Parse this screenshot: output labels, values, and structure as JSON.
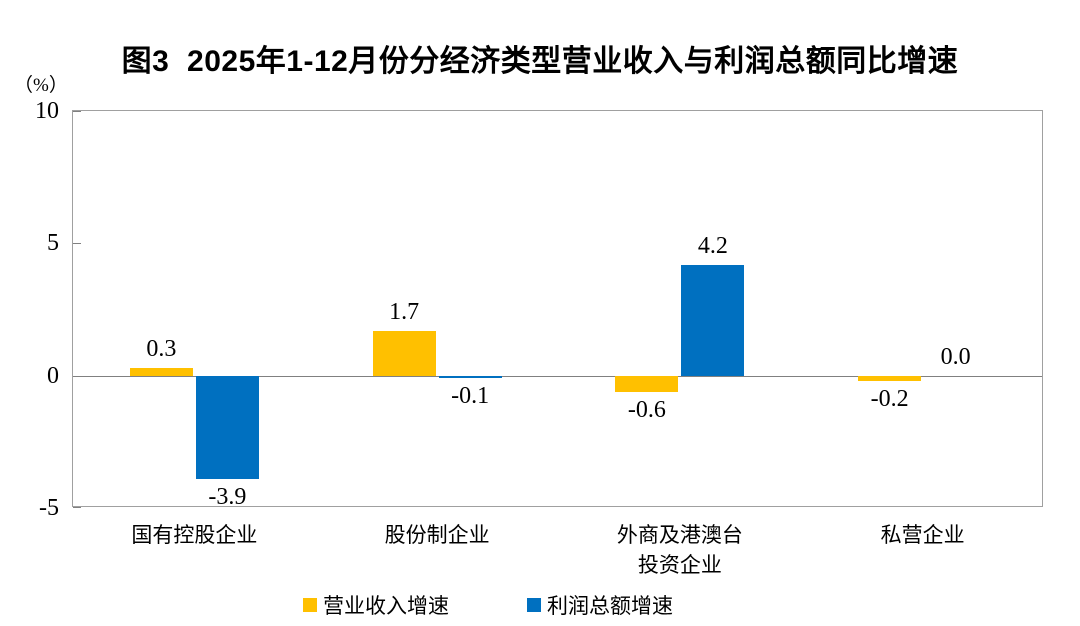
{
  "chart": {
    "title": "图3  2025年1-12月份分经济类型营业收入与利润总额同比增速",
    "unit_label": "（%）"
  },
  "chart_data": {
    "type": "bar",
    "title": "图3  2025年1-12月份分经济类型营业收入与利润总额同比增速",
    "unit": "%",
    "categories": [
      "国有控股企业",
      "股份制企业",
      "外商及港澳台\n投资企业",
      "私营企业"
    ],
    "series": [
      {
        "name": "营业收入增速",
        "color": "#FFC000",
        "values": [
          0.3,
          1.7,
          -0.6,
          -0.2
        ]
      },
      {
        "name": "利润总额增速",
        "color": "#0070C0",
        "values": [
          -3.9,
          -0.1,
          4.2,
          0.0
        ]
      }
    ],
    "ylim": [
      -5,
      10
    ],
    "yticks": [
      10,
      5,
      0,
      -5
    ],
    "ylabel": "（%）",
    "grid": false,
    "legend_position": "bottom",
    "axis_color": "#a0a0a0",
    "zero_line_color": "#808080"
  }
}
